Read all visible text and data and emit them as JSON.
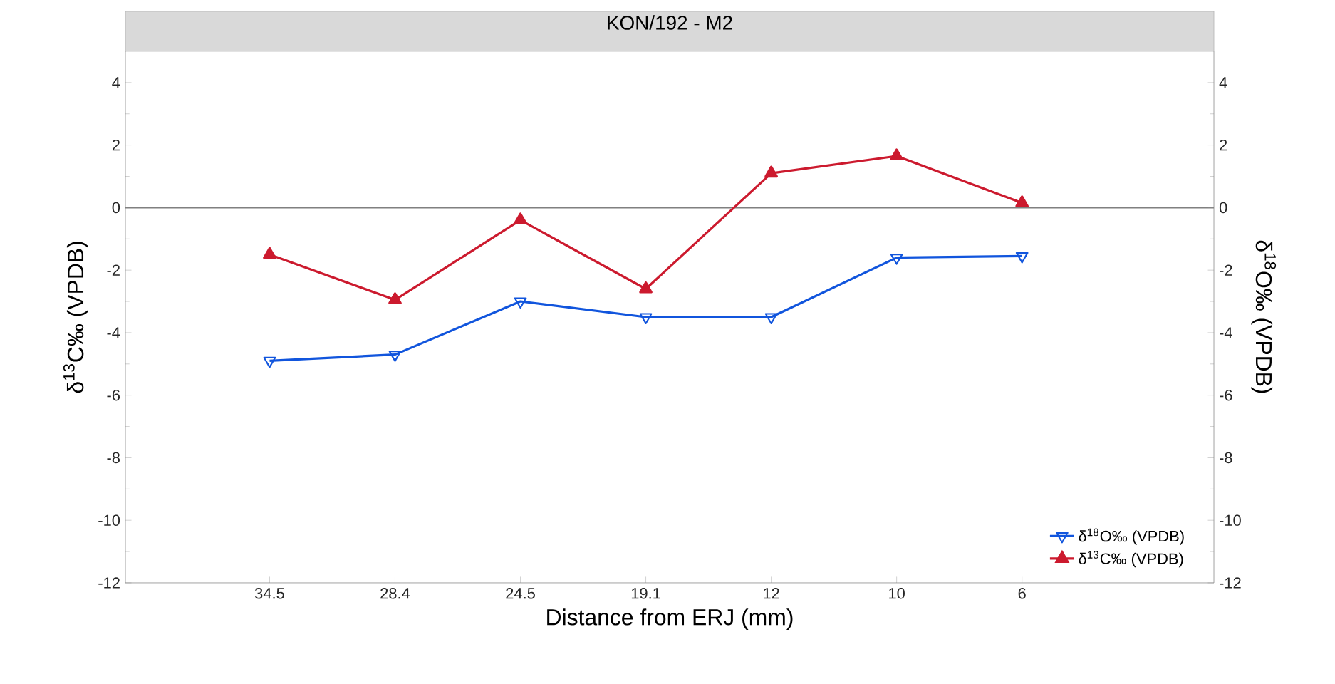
{
  "chart_data": {
    "type": "line",
    "title": "KON/192 - M2",
    "xlabel": "Distance from ERJ (mm)",
    "ylabel": "δ$^{13}$C‰ (VPDB)",
    "y2label": "δ$^{18}$O‰ (VPDB)",
    "categories": [
      "34.5",
      "28.4",
      "24.5",
      "19.1",
      "12",
      "10",
      "6"
    ],
    "series": [
      {
        "name": "δ$^{18}$O‰ (VPDB)",
        "color": "#1155dd",
        "marker": "triangle_down",
        "axis": "y2",
        "values": [
          -4.9,
          -4.7,
          -3.0,
          -3.5,
          -3.5,
          -1.6,
          -1.55
        ]
      },
      {
        "name": "δ$^{13}$C‰ (VPDB)",
        "color": "#cc1a2e",
        "marker": "triangle",
        "values": [
          -1.5,
          -2.95,
          -0.4,
          -2.6,
          1.1,
          1.65,
          0.15
        ]
      }
    ],
    "ylim": [
      -12,
      5
    ],
    "yticks": [
      -12,
      -10,
      -8,
      -6,
      -4,
      -2,
      0,
      2,
      4
    ],
    "y2lim": [
      -12,
      5
    ],
    "y2ticks": [
      -12,
      -10,
      -8,
      -6,
      -4,
      -2,
      0,
      2,
      4
    ],
    "ref_lines": [
      {
        "axis": "y",
        "value": 0,
        "color": "#808080"
      }
    ],
    "grid": false,
    "legend": "bottom right",
    "line_style": "solid"
  }
}
